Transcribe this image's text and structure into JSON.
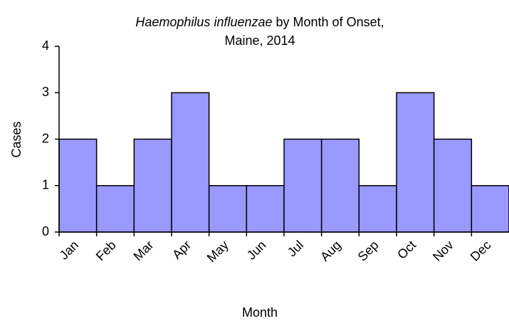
{
  "chart_data": {
    "type": "bar",
    "title": {
      "italic": "Haemophilus influenzae",
      "rest": "by Month of Onset,",
      "line2": "Maine, 2014"
    },
    "x_label": "Month",
    "y_label": "Cases",
    "categories": [
      "Jan",
      "Feb",
      "Mar",
      "Apr",
      "May",
      "Jun",
      "Jul",
      "Aug",
      "Sep",
      "Oct",
      "Nov",
      "Dec"
    ],
    "values": [
      2,
      1,
      2,
      3,
      1,
      1,
      2,
      2,
      1,
      3,
      2,
      1
    ],
    "color": "#9999ff",
    "ylim": [
      0,
      4
    ],
    "yticks": [
      0,
      1,
      2,
      3,
      4
    ],
    "grid": false
  }
}
